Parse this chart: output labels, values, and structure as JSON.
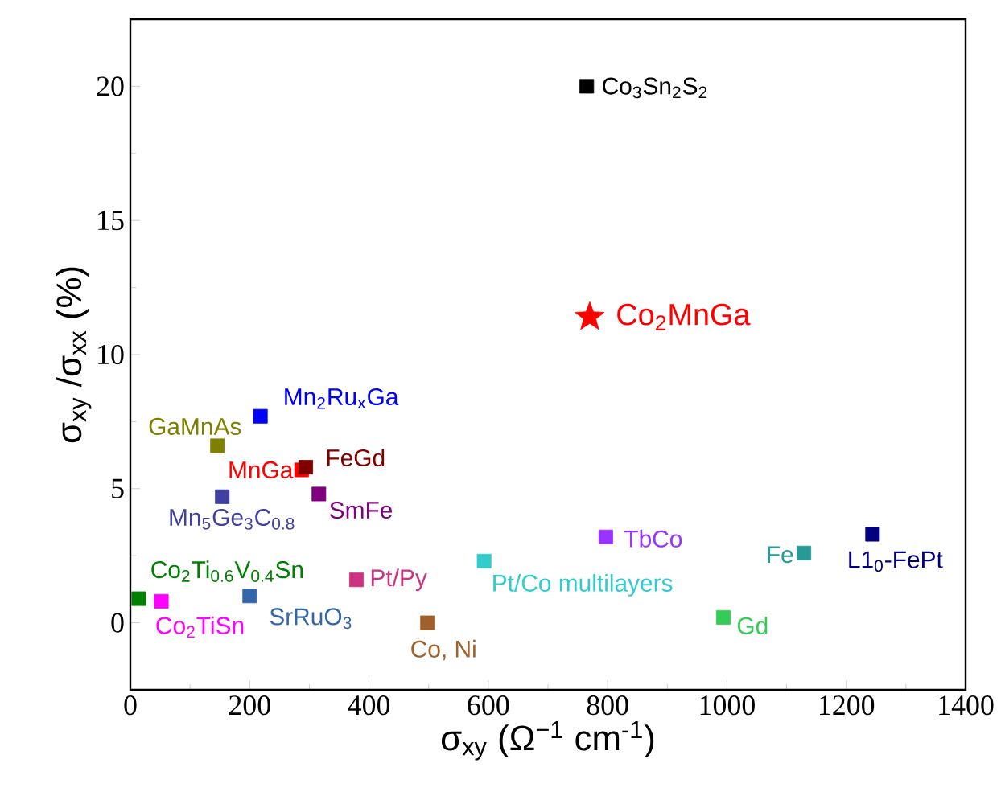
{
  "chart_data": {
    "type": "scatter",
    "xlabel": "σ$_{xy}$ (Ω$^{−1}$ cm$^{-1}$)",
    "ylabel": "σ$_{xy}$ /σ$_{xx}$ (%)",
    "xlim": [
      0,
      1400
    ],
    "ylim": [
      -2.5,
      22.5
    ],
    "xticks": [
      0,
      200,
      400,
      600,
      800,
      1000,
      1200,
      1400
    ],
    "yticks": [
      0,
      5,
      10,
      15,
      20
    ],
    "grid": false,
    "marker": "square",
    "series": [
      {
        "name": "Co$_{3}$Sn$_{2}$S$_{2}$",
        "color": "#000000",
        "x": [
          765
        ],
        "values": [
          20
        ]
      },
      {
        "name": "Co$_{2}$MnGa",
        "color": "#ff0000",
        "x": [
          770
        ],
        "values": [
          11.4
        ],
        "marker": "star"
      },
      {
        "name": "Mn$_{2}$Ru$_{x}$Ga",
        "color": "#0000ff",
        "x": [
          218
        ],
        "values": [
          7.7
        ]
      },
      {
        "name": "GaMnAs",
        "color": "#808000",
        "x": [
          146
        ],
        "values": [
          6.6
        ]
      },
      {
        "name": "MnGa",
        "color": "#ff0000",
        "x": [
          287
        ],
        "values": [
          5.7
        ]
      },
      {
        "name": "FeGd",
        "color": "#800000",
        "x": [
          294
        ],
        "values": [
          5.8
        ]
      },
      {
        "name": "Mn$_{5}$Ge$_{3}$C$_{0.8}$",
        "color": "#40409f",
        "x": [
          154
        ],
        "values": [
          4.7
        ]
      },
      {
        "name": "SmFe",
        "color": "#800080",
        "x": [
          316
        ],
        "values": [
          4.8
        ]
      },
      {
        "name": "TbCo",
        "color": "#9933ff",
        "x": [
          797
        ],
        "values": [
          3.2
        ]
      },
      {
        "name": "Fe",
        "color": "#269999",
        "x": [
          1129
        ],
        "values": [
          2.6
        ]
      },
      {
        "name": "L1$_{0}$-FePt",
        "color": "#000080",
        "x": [
          1244
        ],
        "values": [
          3.3
        ]
      },
      {
        "name": "Pt/Co multilayers",
        "color": "#33cccc",
        "x": [
          593
        ],
        "values": [
          2.3
        ]
      },
      {
        "name": "Pt/Py",
        "color": "#cc3380",
        "x": [
          379
        ],
        "values": [
          1.6
        ]
      },
      {
        "name": "Co$_{2}$Ti$_{0.6}$V$_{0.4}$Sn",
        "color": "#008000",
        "x": [
          14
        ],
        "values": [
          0.9
        ]
      },
      {
        "name": "Co$_{2}$TiSn",
        "color": "#ff00ff",
        "x": [
          52
        ],
        "values": [
          0.8
        ]
      },
      {
        "name": "SrRuO$_{3}$",
        "color": "#3366aa",
        "x": [
          200
        ],
        "values": [
          1.0
        ]
      },
      {
        "name": "Co, Ni",
        "color": "#a0602a",
        "x": [
          498
        ],
        "values": [
          0
        ]
      },
      {
        "name": "Gd",
        "color": "#33cc55",
        "x": [
          994
        ],
        "values": [
          0.2
        ]
      }
    ]
  }
}
